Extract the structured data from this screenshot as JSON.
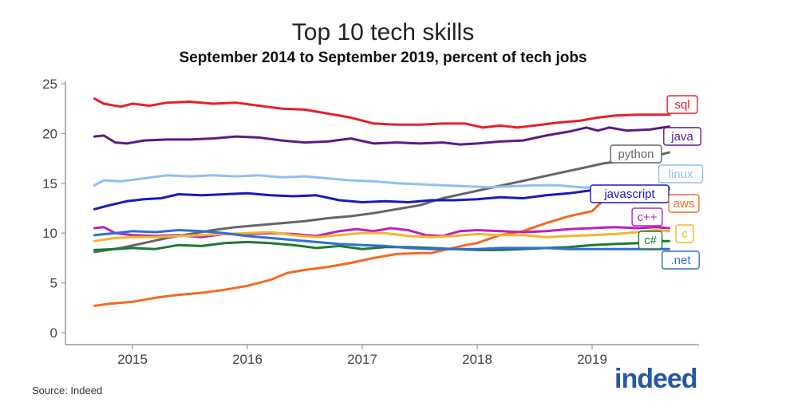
{
  "chart_data": {
    "type": "line",
    "title": "Top 10 tech skills",
    "subtitle": "September 2014 to September 2019, percent of tech jobs",
    "xlabel": "",
    "ylabel": "",
    "xlim": [
      2014.62,
      2019.72
    ],
    "ylim": [
      0,
      25
    ],
    "yticks": [
      "0",
      "5",
      "10",
      "15",
      "20",
      "25"
    ],
    "xticks": [
      "2015",
      "2016",
      "2017",
      "2018",
      "2019"
    ],
    "series": [
      {
        "name": "sql",
        "color": "#e8202a",
        "points": [
          [
            2014.67,
            23.5
          ],
          [
            2014.75,
            23.0
          ],
          [
            2014.9,
            22.7
          ],
          [
            2015.0,
            23.0
          ],
          [
            2015.15,
            22.8
          ],
          [
            2015.3,
            23.1
          ],
          [
            2015.5,
            23.2
          ],
          [
            2015.7,
            23.0
          ],
          [
            2015.9,
            23.1
          ],
          [
            2016.1,
            22.8
          ],
          [
            2016.3,
            22.5
          ],
          [
            2016.5,
            22.4
          ],
          [
            2016.7,
            22.0
          ],
          [
            2016.9,
            21.6
          ],
          [
            2017.1,
            21.0
          ],
          [
            2017.3,
            20.9
          ],
          [
            2017.5,
            20.9
          ],
          [
            2017.7,
            21.0
          ],
          [
            2017.9,
            21.0
          ],
          [
            2018.05,
            20.6
          ],
          [
            2018.2,
            20.8
          ],
          [
            2018.35,
            20.6
          ],
          [
            2018.5,
            20.8
          ],
          [
            2018.7,
            21.1
          ],
          [
            2018.9,
            21.3
          ],
          [
            2019.05,
            21.6
          ],
          [
            2019.2,
            21.8
          ],
          [
            2019.4,
            21.9
          ],
          [
            2019.6,
            21.9
          ],
          [
            2019.67,
            21.9
          ]
        ]
      },
      {
        "name": "java",
        "color": "#5b1a8a",
        "points": [
          [
            2014.67,
            19.7
          ],
          [
            2014.75,
            19.8
          ],
          [
            2014.85,
            19.1
          ],
          [
            2014.95,
            19.0
          ],
          [
            2015.1,
            19.3
          ],
          [
            2015.3,
            19.4
          ],
          [
            2015.5,
            19.4
          ],
          [
            2015.7,
            19.5
          ],
          [
            2015.9,
            19.7
          ],
          [
            2016.1,
            19.6
          ],
          [
            2016.3,
            19.3
          ],
          [
            2016.5,
            19.1
          ],
          [
            2016.7,
            19.2
          ],
          [
            2016.9,
            19.5
          ],
          [
            2017.1,
            19.0
          ],
          [
            2017.3,
            19.1
          ],
          [
            2017.5,
            19.0
          ],
          [
            2017.7,
            19.1
          ],
          [
            2017.85,
            18.9
          ],
          [
            2018.0,
            19.0
          ],
          [
            2018.2,
            19.2
          ],
          [
            2018.4,
            19.3
          ],
          [
            2018.6,
            19.8
          ],
          [
            2018.8,
            20.2
          ],
          [
            2018.95,
            20.6
          ],
          [
            2019.05,
            20.3
          ],
          [
            2019.15,
            20.6
          ],
          [
            2019.3,
            20.3
          ],
          [
            2019.5,
            20.4
          ],
          [
            2019.67,
            20.7
          ]
        ]
      },
      {
        "name": "python",
        "color": "#666666",
        "points": [
          [
            2014.67,
            8.1
          ],
          [
            2014.9,
            8.5
          ],
          [
            2015.1,
            9.0
          ],
          [
            2015.3,
            9.5
          ],
          [
            2015.5,
            9.9
          ],
          [
            2015.7,
            10.3
          ],
          [
            2015.9,
            10.6
          ],
          [
            2016.1,
            10.8
          ],
          [
            2016.3,
            11.0
          ],
          [
            2016.5,
            11.2
          ],
          [
            2016.7,
            11.5
          ],
          [
            2016.9,
            11.7
          ],
          [
            2017.1,
            12.0
          ],
          [
            2017.3,
            12.4
          ],
          [
            2017.5,
            12.8
          ],
          [
            2017.7,
            13.5
          ],
          [
            2017.9,
            14.0
          ],
          [
            2018.1,
            14.5
          ],
          [
            2018.3,
            15.0
          ],
          [
            2018.5,
            15.5
          ],
          [
            2018.7,
            16.0
          ],
          [
            2018.9,
            16.5
          ],
          [
            2019.1,
            17.0
          ],
          [
            2019.3,
            17.3
          ],
          [
            2019.5,
            17.6
          ],
          [
            2019.67,
            18.1
          ]
        ]
      },
      {
        "name": "linux",
        "color": "#8fbff5",
        "points": [
          [
            2014.67,
            14.8
          ],
          [
            2014.75,
            15.3
          ],
          [
            2014.9,
            15.2
          ],
          [
            2015.1,
            15.5
          ],
          [
            2015.3,
            15.8
          ],
          [
            2015.5,
            15.7
          ],
          [
            2015.7,
            15.8
          ],
          [
            2015.9,
            15.7
          ],
          [
            2016.1,
            15.8
          ],
          [
            2016.3,
            15.6
          ],
          [
            2016.5,
            15.7
          ],
          [
            2016.7,
            15.5
          ],
          [
            2016.9,
            15.3
          ],
          [
            2017.1,
            15.2
          ],
          [
            2017.3,
            15.0
          ],
          [
            2017.5,
            14.9
          ],
          [
            2017.7,
            14.8
          ],
          [
            2017.9,
            14.7
          ],
          [
            2018.1,
            14.6
          ],
          [
            2018.3,
            14.7
          ],
          [
            2018.5,
            14.8
          ],
          [
            2018.7,
            14.8
          ],
          [
            2018.9,
            14.6
          ],
          [
            2019.1,
            14.5
          ],
          [
            2019.3,
            14.6
          ],
          [
            2019.5,
            14.7
          ],
          [
            2019.67,
            14.6
          ]
        ]
      },
      {
        "name": "javascript",
        "color": "#1a1abf",
        "points": [
          [
            2014.67,
            12.4
          ],
          [
            2014.8,
            12.8
          ],
          [
            2014.95,
            13.2
          ],
          [
            2015.1,
            13.4
          ],
          [
            2015.25,
            13.5
          ],
          [
            2015.4,
            13.9
          ],
          [
            2015.6,
            13.8
          ],
          [
            2015.8,
            13.9
          ],
          [
            2016.0,
            14.0
          ],
          [
            2016.2,
            13.8
          ],
          [
            2016.4,
            13.7
          ],
          [
            2016.6,
            13.8
          ],
          [
            2016.8,
            13.3
          ],
          [
            2017.0,
            13.1
          ],
          [
            2017.2,
            13.2
          ],
          [
            2017.4,
            13.1
          ],
          [
            2017.6,
            13.3
          ],
          [
            2017.8,
            13.3
          ],
          [
            2018.0,
            13.4
          ],
          [
            2018.2,
            13.6
          ],
          [
            2018.4,
            13.5
          ],
          [
            2018.6,
            13.8
          ],
          [
            2018.8,
            14.0
          ],
          [
            2019.0,
            14.3
          ],
          [
            2019.2,
            14.2
          ],
          [
            2019.4,
            14.4
          ],
          [
            2019.67,
            14.4
          ]
        ]
      },
      {
        "name": "aws",
        "color": "#f26a21",
        "points": [
          [
            2014.67,
            2.7
          ],
          [
            2014.8,
            2.9
          ],
          [
            2015.0,
            3.1
          ],
          [
            2015.2,
            3.5
          ],
          [
            2015.4,
            3.8
          ],
          [
            2015.6,
            4.0
          ],
          [
            2015.8,
            4.3
          ],
          [
            2016.0,
            4.7
          ],
          [
            2016.2,
            5.3
          ],
          [
            2016.35,
            6.0
          ],
          [
            2016.5,
            6.3
          ],
          [
            2016.7,
            6.6
          ],
          [
            2016.9,
            7.0
          ],
          [
            2017.1,
            7.5
          ],
          [
            2017.3,
            7.9
          ],
          [
            2017.5,
            8.0
          ],
          [
            2017.6,
            8.0
          ],
          [
            2017.75,
            8.4
          ],
          [
            2017.9,
            8.8
          ],
          [
            2018.0,
            9.0
          ],
          [
            2018.2,
            9.8
          ],
          [
            2018.4,
            10.2
          ],
          [
            2018.6,
            11.0
          ],
          [
            2018.8,
            11.7
          ],
          [
            2019.0,
            12.2
          ],
          [
            2019.1,
            13.3
          ],
          [
            2019.2,
            13.7
          ],
          [
            2019.35,
            14.0
          ],
          [
            2019.5,
            14.2
          ],
          [
            2019.67,
            14.4
          ]
        ]
      },
      {
        "name": "c++",
        "color": "#bd21b8",
        "points": [
          [
            2014.67,
            10.5
          ],
          [
            2014.75,
            10.6
          ],
          [
            2014.85,
            10.0
          ],
          [
            2015.0,
            9.8
          ],
          [
            2015.2,
            9.7
          ],
          [
            2015.4,
            9.8
          ],
          [
            2015.6,
            9.6
          ],
          [
            2015.8,
            9.9
          ],
          [
            2016.0,
            9.9
          ],
          [
            2016.2,
            10.0
          ],
          [
            2016.4,
            9.9
          ],
          [
            2016.6,
            9.7
          ],
          [
            2016.8,
            10.2
          ],
          [
            2016.95,
            10.4
          ],
          [
            2017.1,
            10.2
          ],
          [
            2017.25,
            10.5
          ],
          [
            2017.4,
            10.3
          ],
          [
            2017.55,
            9.8
          ],
          [
            2017.7,
            9.7
          ],
          [
            2017.85,
            10.2
          ],
          [
            2018.0,
            10.3
          ],
          [
            2018.2,
            10.2
          ],
          [
            2018.4,
            10.1
          ],
          [
            2018.6,
            10.2
          ],
          [
            2018.8,
            10.4
          ],
          [
            2019.0,
            10.5
          ],
          [
            2019.2,
            10.6
          ],
          [
            2019.4,
            10.5
          ],
          [
            2019.55,
            10.6
          ],
          [
            2019.67,
            10.5
          ]
        ]
      },
      {
        "name": "c",
        "color": "#f4b52a",
        "points": [
          [
            2014.67,
            9.2
          ],
          [
            2014.85,
            9.5
          ],
          [
            2015.0,
            9.6
          ],
          [
            2015.2,
            9.6
          ],
          [
            2015.4,
            9.7
          ],
          [
            2015.6,
            9.8
          ],
          [
            2015.8,
            9.9
          ],
          [
            2016.0,
            10.0
          ],
          [
            2016.2,
            10.1
          ],
          [
            2016.4,
            9.8
          ],
          [
            2016.6,
            9.6
          ],
          [
            2016.8,
            9.8
          ],
          [
            2017.0,
            10.0
          ],
          [
            2017.2,
            10.0
          ],
          [
            2017.4,
            9.7
          ],
          [
            2017.6,
            9.6
          ],
          [
            2017.8,
            9.7
          ],
          [
            2018.0,
            9.9
          ],
          [
            2018.2,
            9.8
          ],
          [
            2018.4,
            9.8
          ],
          [
            2018.6,
            9.6
          ],
          [
            2018.8,
            9.7
          ],
          [
            2019.0,
            9.8
          ],
          [
            2019.2,
            9.9
          ],
          [
            2019.4,
            10.1
          ],
          [
            2019.55,
            10.3
          ],
          [
            2019.67,
            10.2
          ]
        ]
      },
      {
        "name": "c#",
        "color": "#1d7a33",
        "points": [
          [
            2014.67,
            8.3
          ],
          [
            2014.85,
            8.4
          ],
          [
            2015.0,
            8.5
          ],
          [
            2015.2,
            8.4
          ],
          [
            2015.4,
            8.8
          ],
          [
            2015.6,
            8.7
          ],
          [
            2015.8,
            9.0
          ],
          [
            2016.0,
            9.1
          ],
          [
            2016.2,
            9.0
          ],
          [
            2016.4,
            8.8
          ],
          [
            2016.6,
            8.5
          ],
          [
            2016.8,
            8.7
          ],
          [
            2017.0,
            8.4
          ],
          [
            2017.2,
            8.6
          ],
          [
            2017.4,
            8.6
          ],
          [
            2017.6,
            8.5
          ],
          [
            2017.8,
            8.4
          ],
          [
            2018.0,
            8.3
          ],
          [
            2018.2,
            8.3
          ],
          [
            2018.4,
            8.4
          ],
          [
            2018.6,
            8.5
          ],
          [
            2018.8,
            8.6
          ],
          [
            2019.0,
            8.8
          ],
          [
            2019.2,
            8.9
          ],
          [
            2019.4,
            9.0
          ],
          [
            2019.55,
            9.2
          ],
          [
            2019.67,
            9.2
          ]
        ]
      },
      {
        "name": ".net",
        "color": "#2f6fd6",
        "points": [
          [
            2014.67,
            9.8
          ],
          [
            2014.85,
            10.0
          ],
          [
            2015.0,
            10.2
          ],
          [
            2015.2,
            10.1
          ],
          [
            2015.4,
            10.3
          ],
          [
            2015.6,
            10.2
          ],
          [
            2015.8,
            10.0
          ],
          [
            2016.0,
            9.7
          ],
          [
            2016.2,
            9.5
          ],
          [
            2016.4,
            9.3
          ],
          [
            2016.6,
            9.1
          ],
          [
            2016.8,
            8.9
          ],
          [
            2017.0,
            8.8
          ],
          [
            2017.2,
            8.7
          ],
          [
            2017.4,
            8.5
          ],
          [
            2017.6,
            8.4
          ],
          [
            2017.8,
            8.4
          ],
          [
            2018.0,
            8.4
          ],
          [
            2018.2,
            8.5
          ],
          [
            2018.4,
            8.5
          ],
          [
            2018.6,
            8.5
          ],
          [
            2018.8,
            8.4
          ],
          [
            2019.0,
            8.4
          ],
          [
            2019.2,
            8.4
          ],
          [
            2019.4,
            8.4
          ],
          [
            2019.55,
            8.4
          ],
          [
            2019.67,
            8.4
          ]
        ]
      }
    ]
  },
  "footer": {
    "source": "Source: Indeed",
    "brand": "indeed"
  }
}
